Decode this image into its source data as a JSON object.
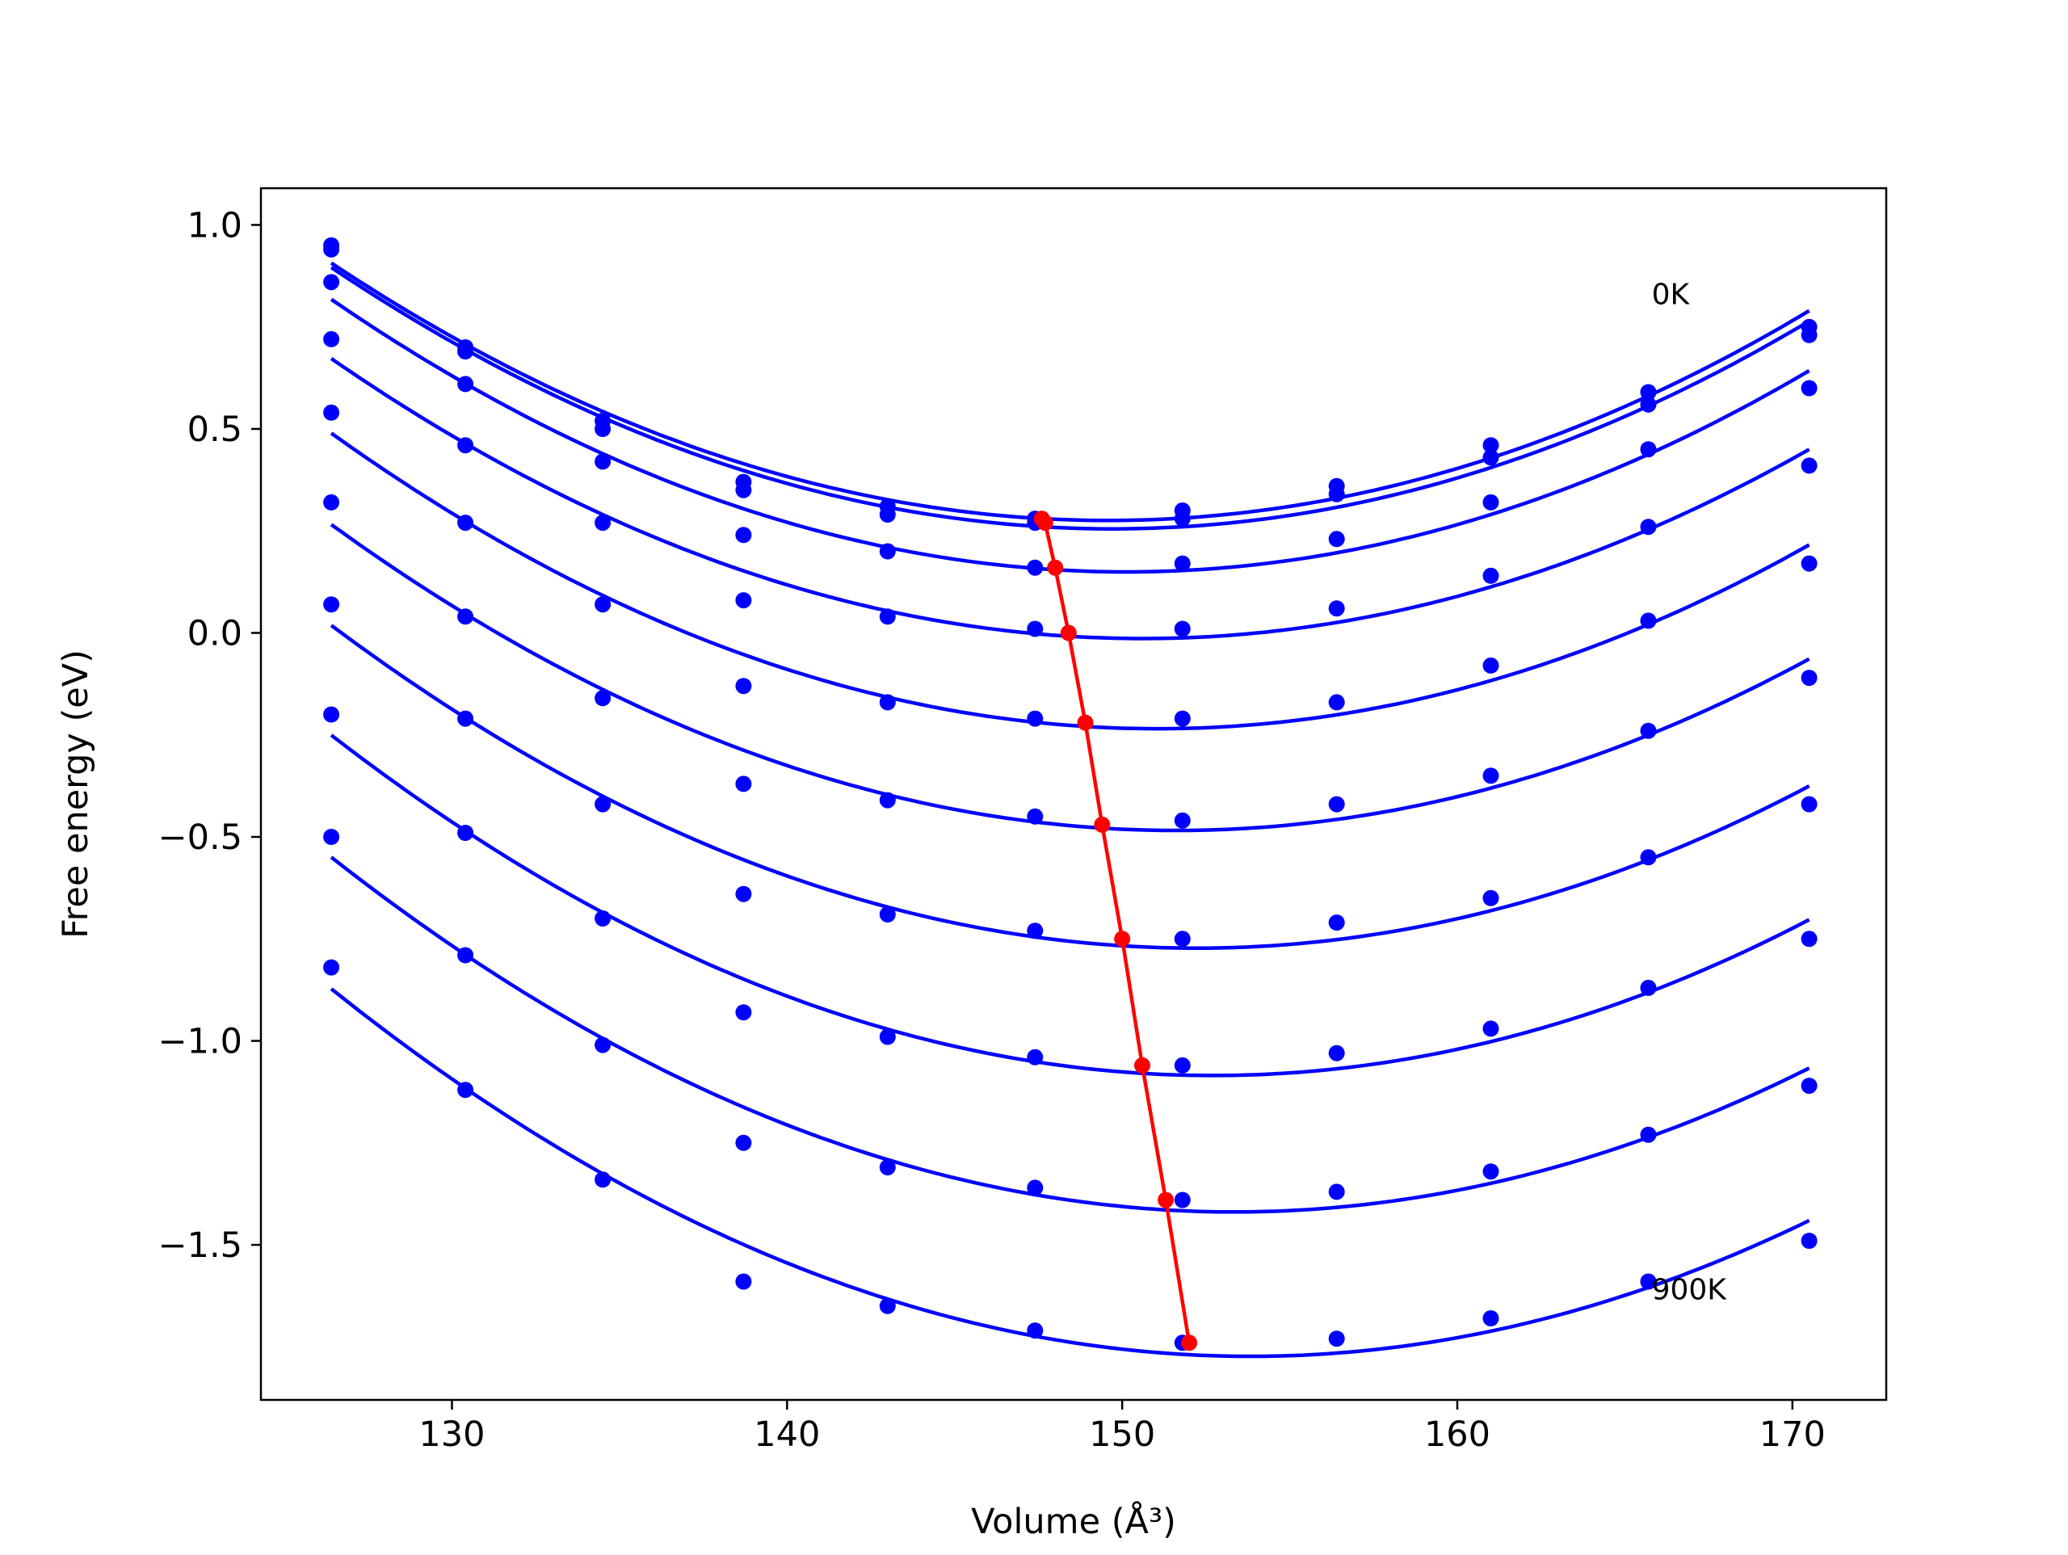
{
  "chart_data": {
    "type": "line",
    "xlabel": "Volume (Å³)",
    "ylabel": "Free energy (eV)",
    "xlim": [
      124.3,
      172.8
    ],
    "ylim": [
      -1.88,
      1.09
    ],
    "x_ticks": [
      130,
      140,
      150,
      160,
      170
    ],
    "x_tick_labels": [
      "130",
      "140",
      "150",
      "160",
      "170"
    ],
    "y_ticks": [
      -1.5,
      -1.0,
      -0.5,
      0.0,
      0.5,
      1.0
    ],
    "y_tick_labels": [
      "−1.5",
      "−1.0",
      "−0.5",
      "0.0",
      "0.5",
      "1.0"
    ],
    "grid": false,
    "legend": "none",
    "colors": {
      "fit": "#0000ff",
      "points": "#0000ff",
      "minimum": "#ff0000"
    },
    "annotations": [
      {
        "text": "0K",
        "x": 165.8,
        "y": 0.83
      },
      {
        "text": "900K",
        "x": 165.8,
        "y": -1.61
      }
    ],
    "volumes": [
      126.4,
      130.4,
      134.5,
      138.7,
      143.0,
      147.4,
      151.8,
      156.4,
      161.0,
      165.7,
      170.5
    ],
    "series": [
      {
        "points": [
          0.95,
          0.7,
          0.52,
          0.37,
          0.31,
          0.28,
          0.3,
          0.36,
          0.46,
          0.59,
          0.75
        ],
        "fit_min": [
          147.6,
          0.28
        ]
      },
      {
        "points": [
          0.94,
          0.69,
          0.5,
          0.35,
          0.29,
          0.27,
          0.28,
          0.34,
          0.43,
          0.56,
          0.73
        ],
        "fit_min": [
          147.7,
          0.27
        ]
      },
      {
        "points": [
          0.86,
          0.61,
          0.42,
          0.24,
          0.2,
          0.16,
          0.17,
          0.23,
          0.32,
          0.45,
          0.6
        ],
        "fit_min": [
          148.0,
          0.16
        ]
      },
      {
        "points": [
          0.72,
          0.46,
          0.27,
          0.08,
          0.04,
          0.01,
          0.01,
          0.06,
          0.14,
          0.26,
          0.41
        ],
        "fit_min": [
          148.4,
          0.0
        ]
      },
      {
        "points": [
          0.54,
          0.27,
          0.07,
          -0.13,
          -0.17,
          -0.21,
          -0.21,
          -0.17,
          -0.08,
          0.03,
          0.17
        ],
        "fit_min": [
          148.9,
          -0.22
        ]
      },
      {
        "points": [
          0.32,
          0.04,
          -0.16,
          -0.37,
          -0.41,
          -0.45,
          -0.46,
          -0.42,
          -0.35,
          -0.24,
          -0.11
        ],
        "fit_min": [
          149.4,
          -0.47
        ]
      },
      {
        "points": [
          0.07,
          -0.21,
          -0.42,
          -0.64,
          -0.69,
          -0.73,
          -0.75,
          -0.71,
          -0.65,
          -0.55,
          -0.42
        ],
        "fit_min": [
          150.0,
          -0.75
        ]
      },
      {
        "points": [
          -0.2,
          -0.49,
          -0.7,
          -0.93,
          -0.99,
          -1.04,
          -1.06,
          -1.03,
          -0.97,
          -0.87,
          -0.75
        ],
        "fit_min": [
          150.6,
          -1.06
        ]
      },
      {
        "points": [
          -0.5,
          -0.79,
          -1.01,
          -1.25,
          -1.31,
          -1.36,
          -1.39,
          -1.37,
          -1.32,
          -1.23,
          -1.11
        ],
        "fit_min": [
          151.3,
          -1.39
        ]
      },
      {
        "points": [
          -0.82,
          -1.12,
          -1.34,
          -1.59,
          -1.65,
          -1.71,
          -1.74,
          -1.73,
          -1.68,
          -1.59,
          -1.49
        ],
        "fit_min": [
          152.0,
          -1.74
        ]
      }
    ]
  }
}
